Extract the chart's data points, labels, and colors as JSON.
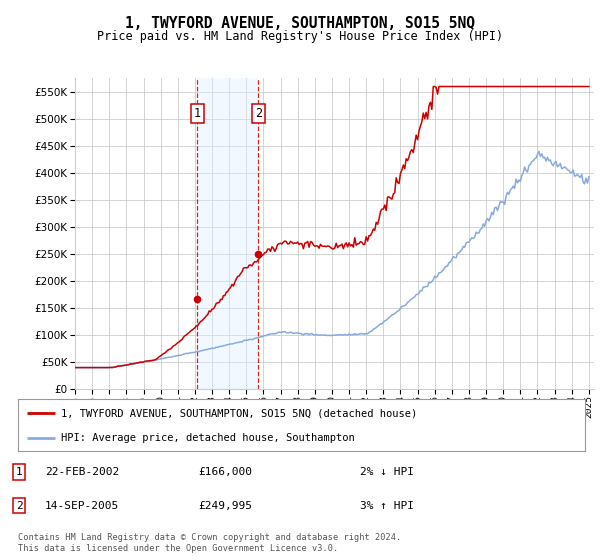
{
  "title": "1, TWYFORD AVENUE, SOUTHAMPTON, SO15 5NQ",
  "subtitle": "Price paid vs. HM Land Registry's House Price Index (HPI)",
  "ylim": [
    0,
    575000
  ],
  "yticks": [
    0,
    50000,
    100000,
    150000,
    200000,
    250000,
    300000,
    350000,
    400000,
    450000,
    500000,
    550000
  ],
  "year_start": 1995,
  "year_end": 2025,
  "sale1_date": 2002.13,
  "sale1_price": 166000,
  "sale1_label": "1",
  "sale2_date": 2005.71,
  "sale2_price": 249995,
  "sale2_label": "2",
  "line_color_property": "#cc0000",
  "line_color_hpi": "#88aadd",
  "shade_color": "#ddeeff",
  "dashed_line_color": "#cc0000",
  "legend_label1": "1, TWYFORD AVENUE, SOUTHAMPTON, SO15 5NQ (detached house)",
  "legend_label2": "HPI: Average price, detached house, Southampton",
  "footnote": "Contains HM Land Registry data © Crown copyright and database right 2024.\nThis data is licensed under the Open Government Licence v3.0.",
  "bg_color": "#ffffff",
  "grid_color": "#cccccc"
}
